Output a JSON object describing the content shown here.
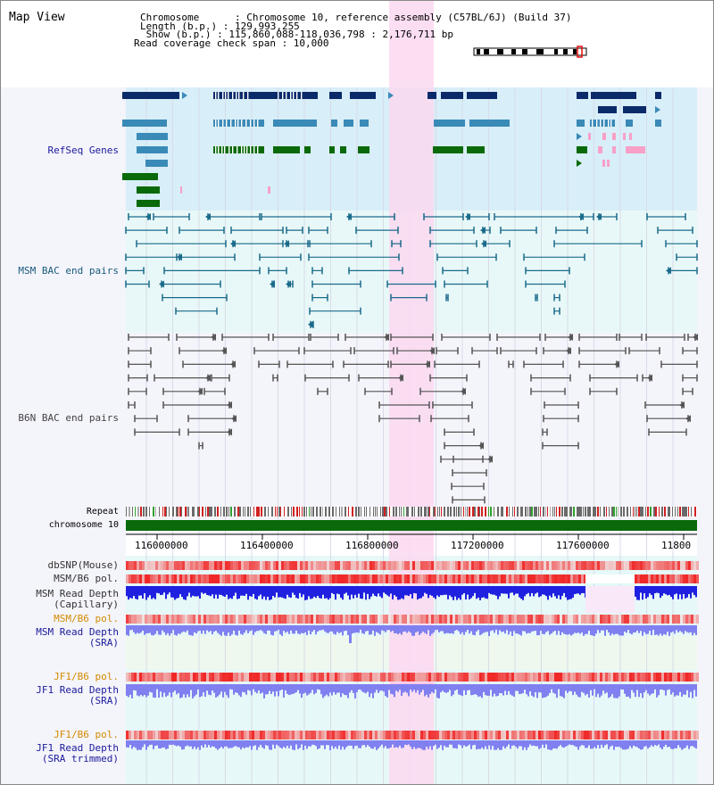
{
  "header": {
    "title": "Map View",
    "chromosome_line": "Chromosome      : Chromosome 10, reference assembly (C57BL/6J) (Build 37)",
    "length_line": "Length (b.p.) : 129,993,255",
    "show_line": " Show (b.p.) : 115,860,088-118,036,798 : 2,176,711 bp",
    "coverage_line": "Read coverage check span : 10,000"
  },
  "tracks": {
    "refseq_genes": "RefSeq Genes",
    "msm_bac": "MSM BAC end pairs",
    "b6n_bac": "B6N BAC end pairs",
    "repeat": "Repeat",
    "chromosome": "chromosome 10",
    "dbsnp": "dbSNP(Mouse)",
    "msm_b6_pol_1": "MSM/B6 pol.",
    "msm_depth_cap_1": "MSM Read Depth",
    "msm_depth_cap_2": "(Capillary)",
    "msm_b6_pol_2": "MSM/B6 pol.",
    "msm_depth_sra_1": "MSM Read Depth",
    "msm_depth_sra_2": "(SRA)",
    "jf1_b6_pol_1": "JF1/B6 pol.",
    "jf1_depth_sra_1": "JF1 Read Depth",
    "jf1_depth_sra_2": "(SRA)",
    "jf1_b6_pol_2": "JF1/B6 pol.",
    "jf1_depth_trim_1": "JF1 Read Depth",
    "jf1_depth_trim_2": "(SRA trimmed)"
  },
  "axis": {
    "ticks": [
      "116000000",
      "116400000",
      "116800000",
      "117200000",
      "117600000",
      "11800"
    ]
  },
  "colors": {
    "refseq_bg": "#d8eef8",
    "msm_bg": "#e8f8f8",
    "highlight": "#fbd8f0",
    "gene_dark": "#0a2a6a",
    "gene_mid": "#3a8ab8",
    "gene_green": "#0a6a0a",
    "gene_pink": "#f8a0c8",
    "msm_pair": "#1a6a8a",
    "b6n_pair": "#555555",
    "chromosome_bar": "#0a6a0a",
    "snp_red": "#e84040",
    "depth_blue": "#2020e0",
    "depth_light": "#8080f0"
  }
}
